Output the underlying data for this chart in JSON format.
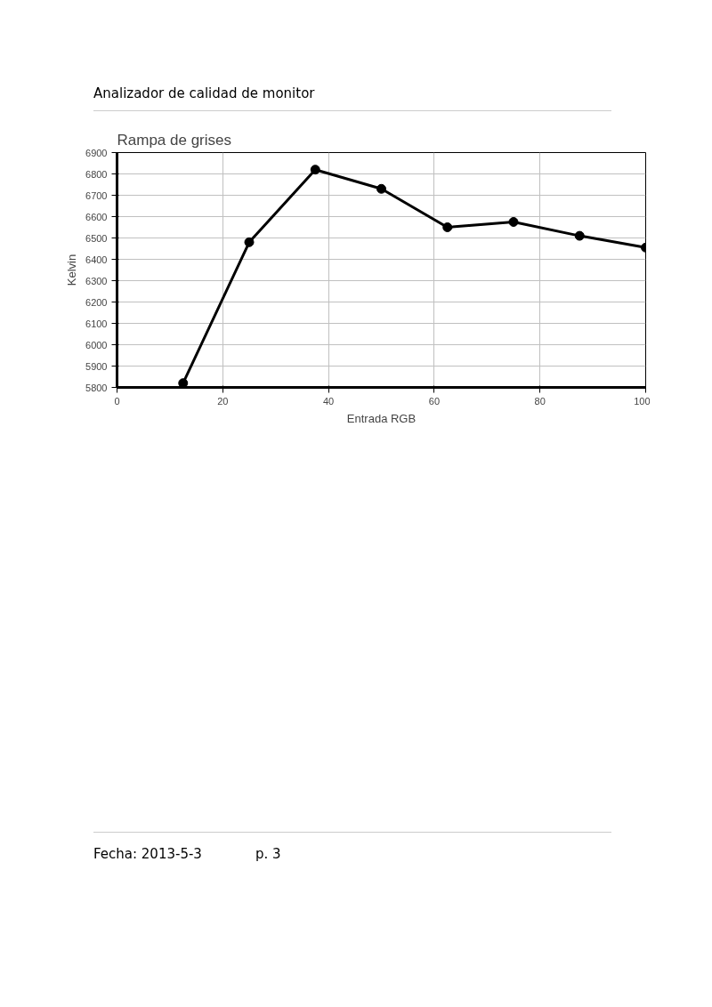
{
  "chart_data": {
    "type": "line",
    "title": "Rampa de grises",
    "xlabel": "Entrada RGB",
    "ylabel": "Kelvin",
    "x": [
      12.5,
      25,
      37.5,
      50,
      62.5,
      75,
      87.5,
      100
    ],
    "series": [
      {
        "color": "#000000",
        "values": [
          5820,
          6480,
          6820,
          6730,
          6550,
          6575,
          6510,
          6455
        ]
      }
    ],
    "xlim": [
      0,
      100
    ],
    "xticks": [
      0,
      20,
      40,
      60,
      80,
      100
    ],
    "ylim": [
      5800,
      6900
    ],
    "yticks": [
      5800,
      5900,
      6000,
      6100,
      6200,
      6300,
      6400,
      6500,
      6600,
      6700,
      6800,
      6900
    ],
    "grid": true,
    "marker": "circle",
    "line_style": "solid",
    "annotations": [
      "Analizador de calidad de monitor",
      "Fecha: 2013-5-3",
      "p. 3"
    ]
  }
}
